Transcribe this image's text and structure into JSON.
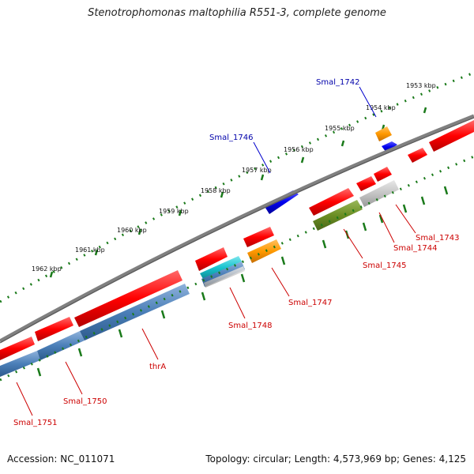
{
  "title": "Stenotrophomonas maltophilia R551-3, complete genome",
  "footer": {
    "accession": "Accession: NC_011071",
    "summary": "Topology: circular; Length: 4,573,969 bp; Genes: 4,125"
  },
  "ticks": [
    "1953 kbp",
    "1954 kbp",
    "1955 kbp",
    "1956 kbp",
    "1957 kbp",
    "1958 kbp",
    "1959 kbp",
    "1960 kbp",
    "1961 kbp",
    "1962 kbp"
  ],
  "genes": {
    "Smal_1742": "Smal_1742",
    "Smal_1743": "Smal_1743",
    "Smal_1744": "Smal_1744",
    "Smal_1745": "Smal_1745",
    "Smal_1746": "Smal_1746",
    "Smal_1747": "Smal_1747",
    "Smal_1748": "Smal_1748",
    "Smal_1750": "Smal_1750",
    "Smal_1751": "Smal_1751",
    "thrA": "thrA"
  },
  "colors": {
    "forward_cds": "#ff0000",
    "reverse_cds": "#4b7fb8",
    "blue_feature": "#0000ee",
    "orange_feature": "#ff9900",
    "green_feature": "#6b8e23",
    "grey_feature": "#bdbdbd",
    "cyan_feature": "#19c4cf",
    "backbone": "#808080",
    "ticks": "#1a7a1a",
    "blue_label": "#0000aa",
    "red_label": "#cc0000"
  }
}
